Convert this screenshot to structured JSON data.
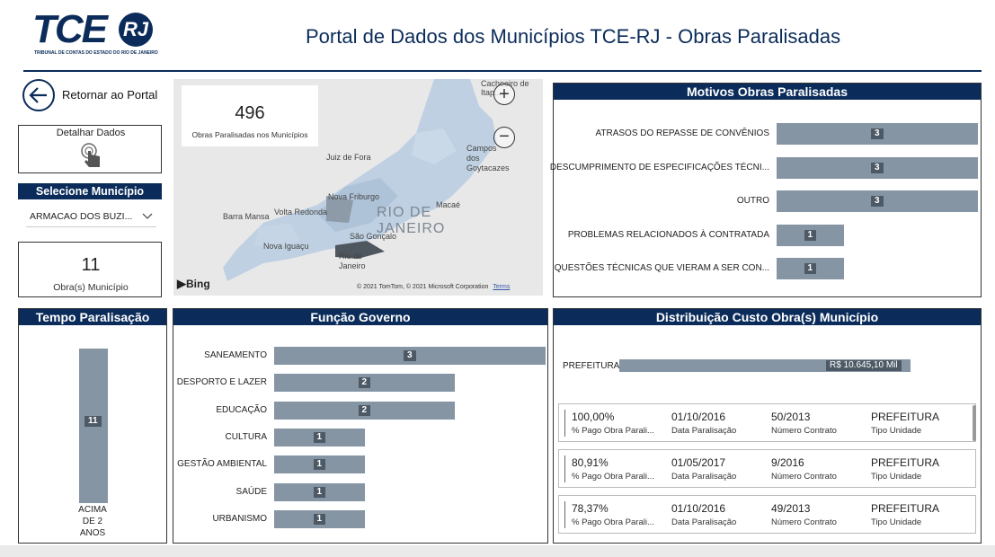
{
  "logo": {
    "text": "TCE",
    "badge": "RJ",
    "subtitle": "TRIBUNAL DE CONTAS DO ESTADO DO RIO DE JANEIRO"
  },
  "header": {
    "title": "Portal de Dados dos Municípios TCE-RJ - Obras Paralisadas"
  },
  "nav": {
    "back_label": "Retornar ao Portal",
    "detail_label": "Detalhar Dados"
  },
  "filter": {
    "title": "Selecione Município",
    "selected": "ARMACAO DOS BUZI..."
  },
  "kpi_total": {
    "value": "496",
    "label": "Obras Paralisadas nos Municípios"
  },
  "kpi_municipio": {
    "value": "11",
    "label": "Obra(s) Município"
  },
  "map": {
    "provider": "Bing",
    "attribution": "© 2021 TomTom, © 2021 Microsoft Corporation",
    "terms": "Terms",
    "labels": [
      "Cachoeiro de Itap...",
      "Juiz de Fora",
      "Campos dos Goytacazes",
      "Nova Friburgo",
      "Macaé",
      "Volta Redonda",
      "Barra Mansa",
      "São Gonçalo",
      "Nova Iguaçu",
      "Rio de Janeiro",
      "RIO DE JANEIRO"
    ],
    "zoom_in": "+",
    "zoom_out": "−"
  },
  "motivos": {
    "title": "Motivos Obras Paralisadas",
    "rows": [
      {
        "label": "ATRASOS DO REPASSE DE CONVÊNIOS",
        "value": 3
      },
      {
        "label": "DESCUMPRIMENTO DE ESPECIFICAÇÕES TÉCNI...",
        "value": 3
      },
      {
        "label": "OUTRO",
        "value": 3
      },
      {
        "label": "PROBLEMAS RELACIONADOS À CONTRATADA",
        "value": 1
      },
      {
        "label": "QUESTÕES TÉCNICAS QUE VIERAM A SER CON...",
        "value": 1
      }
    ]
  },
  "tempo": {
    "title": "Tempo Paralisação",
    "value": 11,
    "category_lines": [
      "ACIMA",
      "DE 2",
      "ANOS"
    ]
  },
  "funcao": {
    "title": "Função Governo",
    "rows": [
      {
        "label": "SANEAMENTO",
        "value": 3
      },
      {
        "label": "DESPORTO E LAZER",
        "value": 2
      },
      {
        "label": "EDUCAÇÃO",
        "value": 2
      },
      {
        "label": "CULTURA",
        "value": 1
      },
      {
        "label": "GESTÃO AMBIENTAL",
        "value": 1
      },
      {
        "label": "SAÚDE",
        "value": 1
      },
      {
        "label": "URBANISMO",
        "value": 1
      }
    ]
  },
  "custo": {
    "title": "Distribuição Custo Obra(s) Município",
    "category": "PREFEITURA",
    "value_label": "R$ 10.645,10 Mil",
    "fraction": 0.9
  },
  "cards": [
    {
      "pago": "100,00%",
      "pago_label": "% Pago Obra Parali...",
      "data": "01/10/2016",
      "data_label": "Data Paralisação",
      "contrato": "50/2013",
      "contrato_label": "Número Contrato",
      "tipo": "PREFEITURA",
      "tipo_label": "Tipo Unidade"
    },
    {
      "pago": "80,91%",
      "pago_label": "% Pago Obra Parali...",
      "data": "01/05/2017",
      "data_label": "Data Paralisação",
      "contrato": "9/2016",
      "contrato_label": "Número Contrato",
      "tipo": "PREFEITURA",
      "tipo_label": "Tipo Unidade"
    },
    {
      "pago": "78,37%",
      "pago_label": "% Pago Obra Parali...",
      "data": "01/10/2016",
      "data_label": "Data Paralisação",
      "contrato": "49/2013",
      "contrato_label": "Número Contrato",
      "tipo": "PREFEITURA",
      "tipo_label": "Tipo Unidade"
    }
  ],
  "chart_data": [
    {
      "type": "bar",
      "title": "Motivos Obras Paralisadas",
      "categories": [
        "ATRASOS DO REPASSE DE CONVÊNIOS",
        "DESCUMPRIMENTO DE ESPECIFICAÇÕES TÉCNI...",
        "OUTRO",
        "PROBLEMAS RELACIONADOS À CONTRATADA",
        "QUESTÕES TÉCNICAS QUE VIERAM A SER CON..."
      ],
      "values": [
        3,
        3,
        3,
        1,
        1
      ]
    },
    {
      "type": "bar",
      "title": "Tempo Paralisação",
      "categories": [
        "ACIMA DE 2 ANOS"
      ],
      "values": [
        11
      ]
    },
    {
      "type": "bar",
      "title": "Função Governo",
      "categories": [
        "SANEAMENTO",
        "DESPORTO E LAZER",
        "EDUCAÇÃO",
        "CULTURA",
        "GESTÃO AMBIENTAL",
        "SAÚDE",
        "URBANISMO"
      ],
      "values": [
        3,
        2,
        2,
        1,
        1,
        1,
        1
      ]
    },
    {
      "type": "bar",
      "title": "Distribuição Custo Obra(s) Município",
      "categories": [
        "PREFEITURA"
      ],
      "values": [
        10645.1
      ]
    }
  ]
}
